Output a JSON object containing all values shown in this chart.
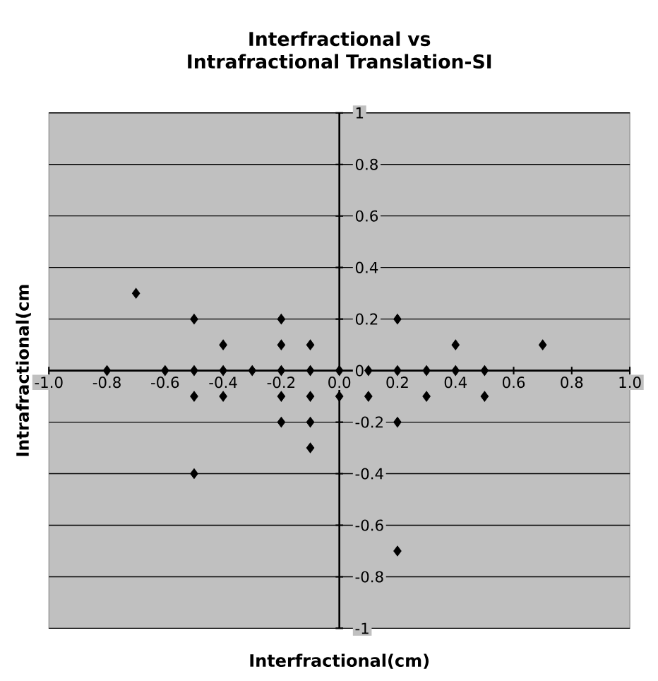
{
  "chart_data": {
    "type": "scatter",
    "title": "Interfractional vs Intrafractional Translation-SI",
    "xlabel": "Interfractional(cm)",
    "ylabel": "Intrafractional(cm",
    "x": [
      -0.7,
      -0.5,
      -0.2,
      -0.4,
      -0.2,
      -0.1,
      -0.8,
      -0.6,
      -0.5,
      -0.4,
      -0.3,
      -0.2,
      -0.1,
      0.0,
      -0.5,
      -0.4,
      -0.2,
      -0.1,
      0.0,
      -0.2,
      -0.1,
      -0.1,
      -0.5,
      0.2,
      0.4,
      0.7,
      0.1,
      0.2,
      0.3,
      0.4,
      0.5,
      0.1,
      0.3,
      0.5,
      0.2,
      0.2
    ],
    "values": [
      0.3,
      0.2,
      0.2,
      0.1,
      0.1,
      0.1,
      0,
      0,
      0,
      0,
      0,
      0,
      0,
      0,
      -0.1,
      -0.1,
      -0.1,
      -0.1,
      -0.1,
      -0.2,
      -0.2,
      -0.3,
      -0.4,
      0.2,
      0.1,
      0.1,
      0,
      0,
      0,
      0,
      0,
      -0.1,
      -0.1,
      -0.1,
      -0.2,
      -0.7
    ],
    "color": "#000000",
    "marker": "diamond",
    "grid": "y",
    "xlim": [
      -1,
      1
    ],
    "ylim": [
      -1,
      1
    ],
    "xticks": [
      {
        "value": -1,
        "label": "-1.0"
      },
      -0.8,
      -0.6,
      -0.4,
      -0.2,
      {
        "value": 0,
        "label": "0.0"
      },
      0.2,
      0.4,
      0.6,
      0.8,
      {
        "value": 1,
        "label": "1.0"
      }
    ],
    "yticks": [
      -1,
      -0.8,
      -0.6,
      -0.4,
      -0.2,
      0,
      0.2,
      0.4,
      0.6,
      0.8,
      1
    ]
  }
}
